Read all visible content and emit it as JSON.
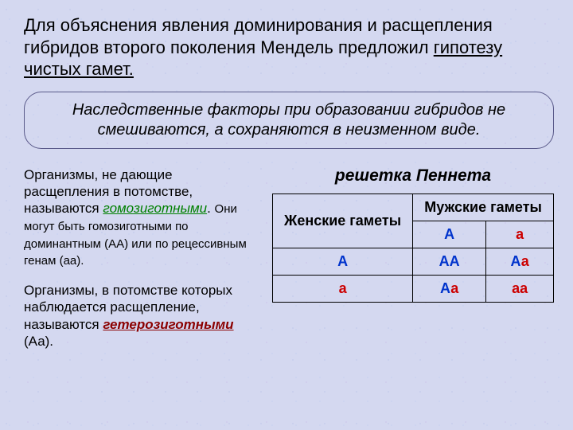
{
  "intro": {
    "line1": "Для объяснения явления доминирования и расщепления гибридов второго поколения Мендель предложил ",
    "underlined": "гипотезу чистых гамет."
  },
  "callout": "Наследственные факторы при образовании гибридов не смешиваются, а сохраняются в неизменном виде.",
  "left": {
    "p1_a": "Организмы, не дающие расщепления в потомстве, называются ",
    "p1_term": "гомозиготными",
    "p1_b": ". ",
    "p1_small": "Они могут быть гомозиготными по доминантным (АА) или по рецессивным генам (аа).",
    "p2_a": "Организмы, в потомстве которых наблюдается расщепление, называются ",
    "p2_term": "гетерозиготными ",
    "p2_b": "(Аа)."
  },
  "punnett": {
    "title": "решетка Пеннета",
    "female_header": "Женские гаметы",
    "male_header": "Мужские гаметы",
    "col_A": "А",
    "col_a": "а",
    "row_A": "А",
    "row_a": "а",
    "AA_1": "А",
    "AA_2": "А",
    "Aa_1": "А",
    "Aa_2": "а",
    "aA_1": "А",
    "aA_2": "а",
    "aa_1": "а",
    "aa_2": "а",
    "colors": {
      "dominant": "#0033cc",
      "recessive": "#cc0000"
    }
  }
}
